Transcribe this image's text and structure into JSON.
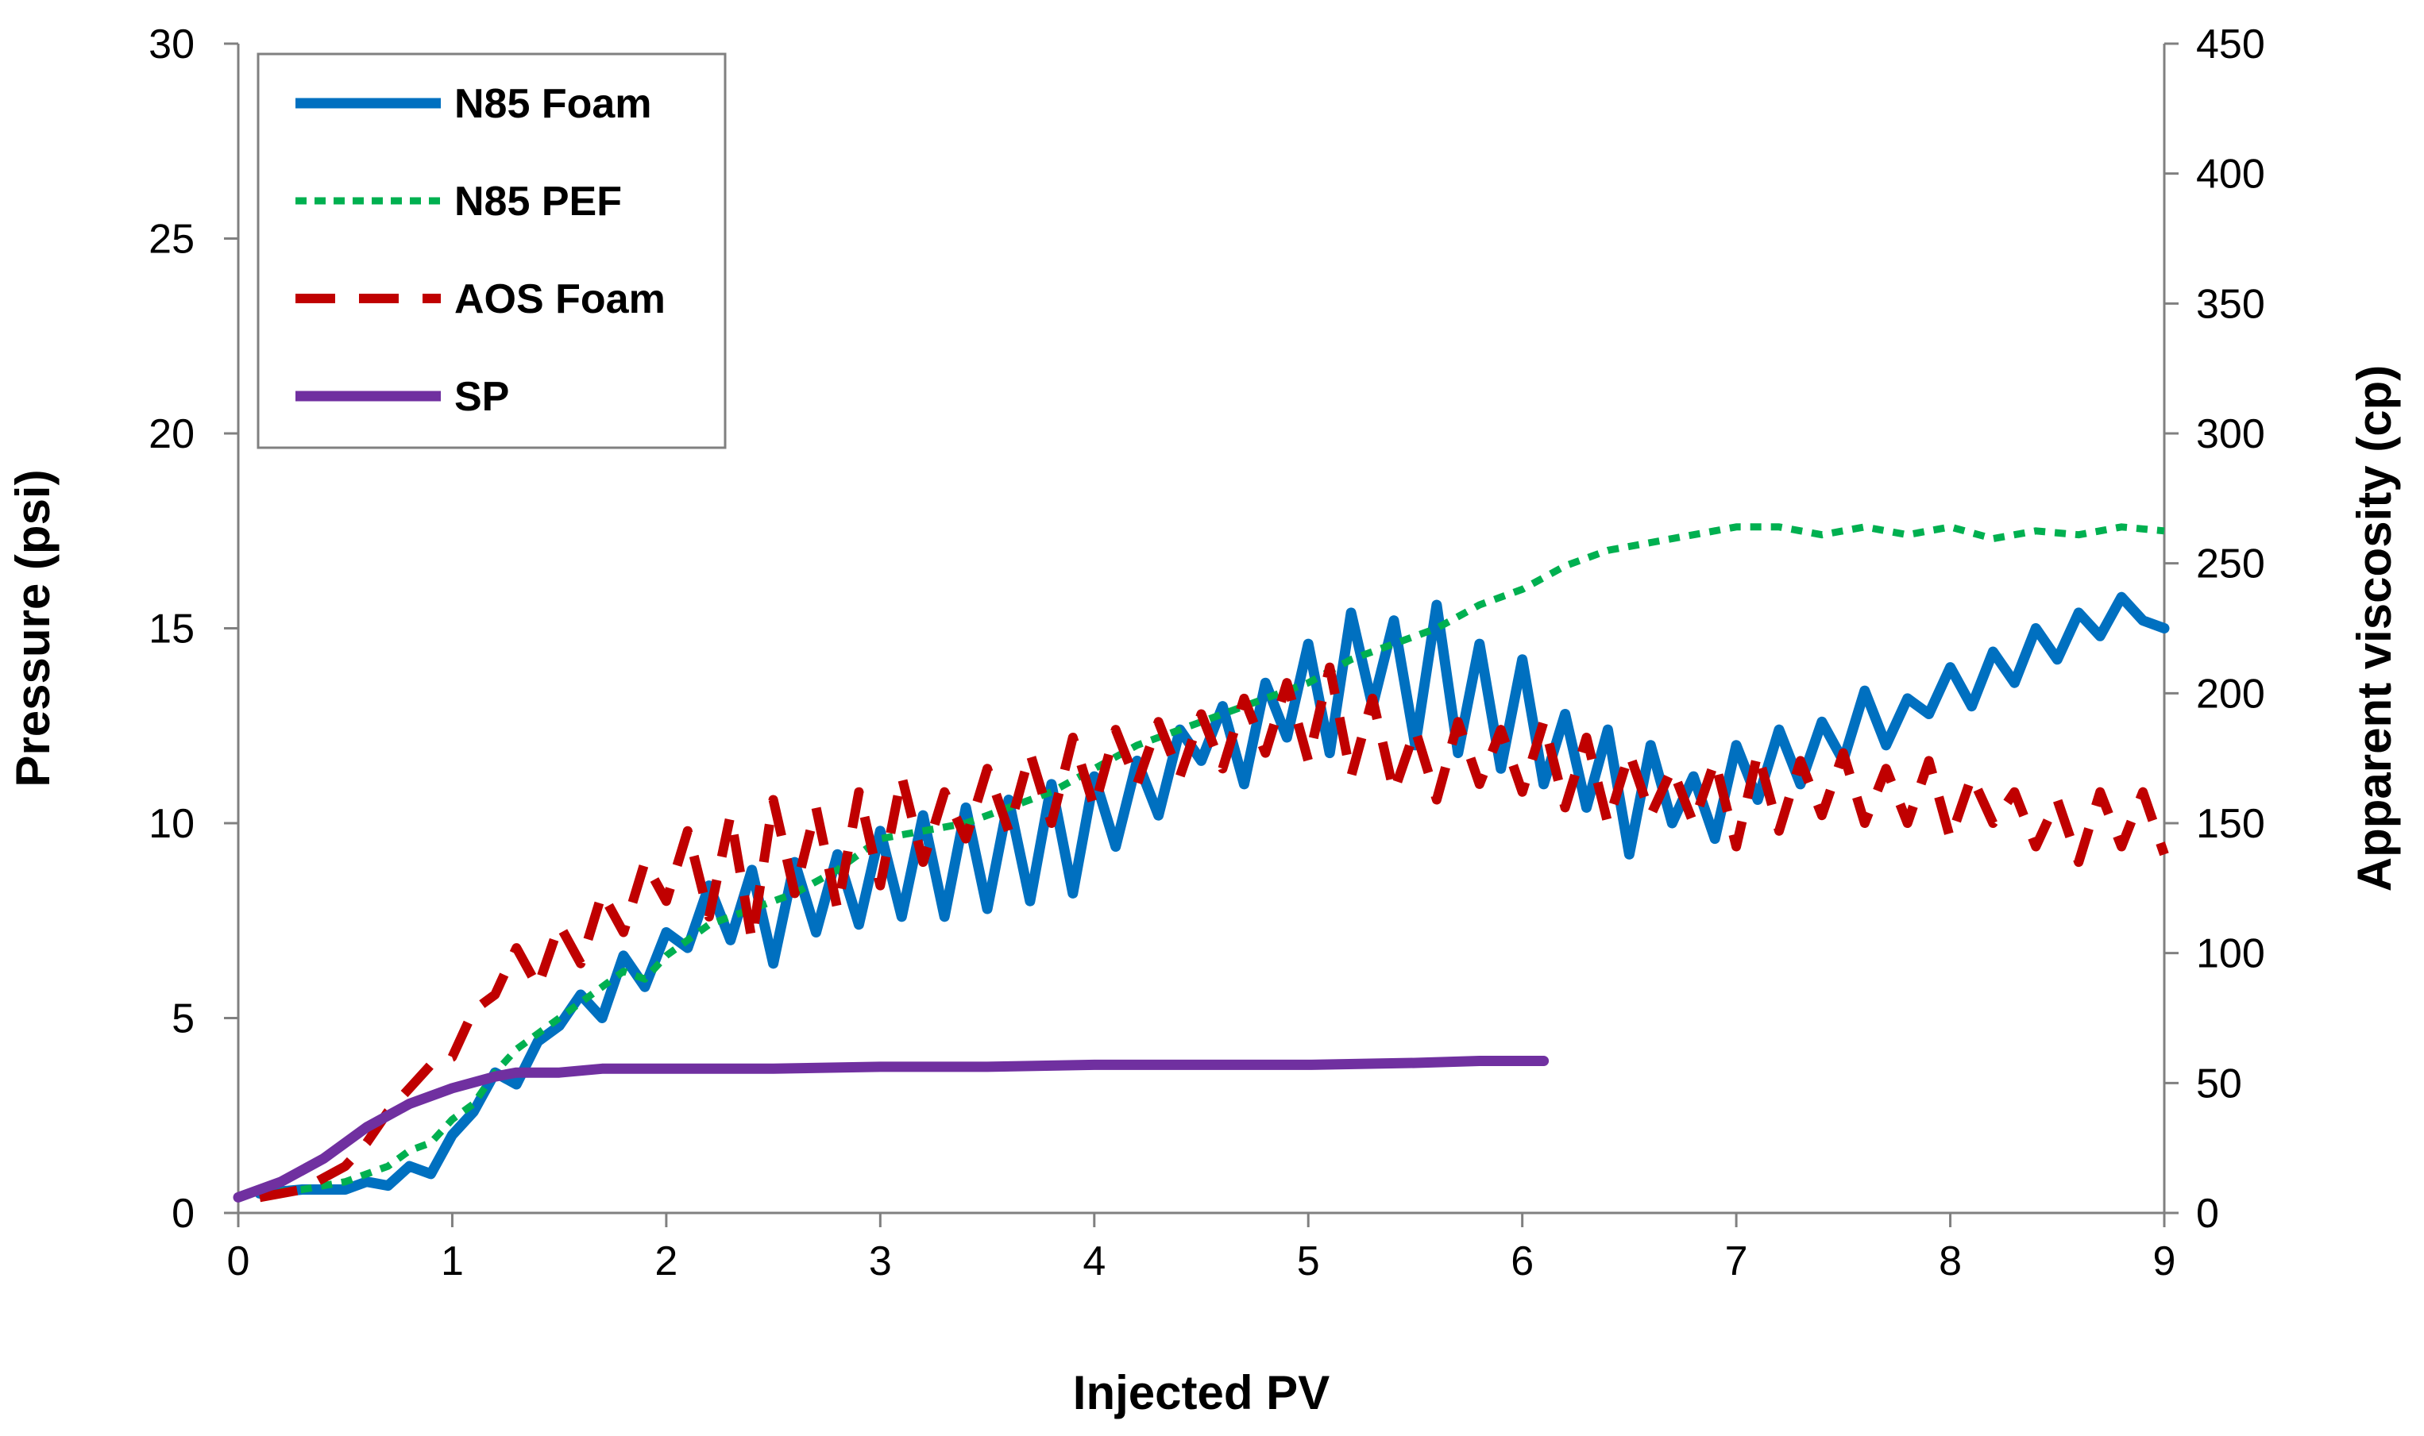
{
  "chart_data": {
    "type": "line",
    "title": "",
    "xlabel": "Injected PV",
    "ylabel": "Pressure (psi)",
    "y2label": "Apparent viscosity (cp)",
    "xlim": [
      0,
      9
    ],
    "ylim": [
      0,
      30
    ],
    "y2lim": [
      0,
      450
    ],
    "xticks": [
      "0",
      "1",
      "2",
      "3",
      "4",
      "5",
      "6",
      "7",
      "8",
      "9"
    ],
    "yticks": [
      "0",
      "5",
      "10",
      "15",
      "20",
      "25",
      "30"
    ],
    "y2ticks": [
      "0",
      "50",
      "100",
      "150",
      "200",
      "250",
      "300",
      "350",
      "400",
      "450"
    ],
    "grid": false,
    "legend_position": "top-left",
    "series": [
      {
        "name": "N85 Foam",
        "color": "#0070c0",
        "style": "solid",
        "x": [
          0.1,
          0.3,
          0.5,
          0.6,
          0.7,
          0.8,
          0.9,
          1.0,
          1.1,
          1.2,
          1.3,
          1.4,
          1.5,
          1.6,
          1.7,
          1.8,
          1.9,
          2.0,
          2.1,
          2.2,
          2.3,
          2.4,
          2.5,
          2.6,
          2.7,
          2.8,
          2.9,
          3.0,
          3.1,
          3.2,
          3.3,
          3.4,
          3.5,
          3.6,
          3.7,
          3.8,
          3.9,
          4.0,
          4.1,
          4.2,
          4.3,
          4.4,
          4.5,
          4.6,
          4.7,
          4.8,
          4.9,
          5.0,
          5.1,
          5.2,
          5.3,
          5.4,
          5.5,
          5.6,
          5.7,
          5.8,
          5.9,
          6.0,
          6.1,
          6.2,
          6.3,
          6.4,
          6.5,
          6.6,
          6.7,
          6.8,
          6.9,
          7.0,
          7.1,
          7.2,
          7.3,
          7.4,
          7.5,
          7.6,
          7.7,
          7.8,
          7.9,
          8.0,
          8.1,
          8.2,
          8.3,
          8.4,
          8.5,
          8.6,
          8.7,
          8.8,
          8.9,
          9.0
        ],
        "y": [
          0.5,
          0.6,
          0.6,
          0.8,
          0.7,
          1.2,
          1.0,
          2.0,
          2.6,
          3.6,
          3.3,
          4.4,
          4.8,
          5.6,
          5.0,
          6.6,
          5.8,
          7.2,
          6.8,
          8.4,
          7.0,
          8.8,
          6.4,
          9.0,
          7.2,
          9.2,
          7.4,
          9.8,
          7.6,
          10.2,
          7.6,
          10.4,
          7.8,
          10.6,
          8.0,
          11.0,
          8.2,
          11.2,
          9.4,
          11.6,
          10.2,
          12.4,
          11.6,
          13.0,
          11.0,
          13.6,
          12.2,
          14.6,
          11.8,
          15.4,
          13.0,
          15.2,
          12.0,
          15.6,
          11.8,
          14.6,
          11.4,
          14.2,
          11.0,
          12.8,
          10.4,
          12.4,
          9.2,
          12.0,
          10.0,
          11.2,
          9.6,
          12.0,
          10.6,
          12.4,
          11.0,
          12.6,
          11.6,
          13.4,
          12.0,
          13.2,
          12.8,
          14.0,
          13.0,
          14.4,
          13.6,
          15.0,
          14.2,
          15.4,
          14.8,
          15.8,
          15.2,
          15.0
        ]
      },
      {
        "name": "N85 PEF",
        "color": "#00b050",
        "style": "dotted",
        "x": [
          0.1,
          0.3,
          0.5,
          0.6,
          0.7,
          0.8,
          0.9,
          1.0,
          1.1,
          1.2,
          1.3,
          1.4,
          1.5,
          1.6,
          1.7,
          1.8,
          1.9,
          2.0,
          2.2,
          2.4,
          2.6,
          2.8,
          3.0,
          3.2,
          3.4,
          3.6,
          3.8,
          4.0,
          4.2,
          4.4,
          4.6,
          4.8,
          5.0,
          5.2,
          5.4,
          5.6,
          5.8,
          6.0,
          6.2,
          6.4,
          6.6,
          6.8,
          7.0,
          7.2,
          7.4,
          7.6,
          7.8,
          8.0,
          8.2,
          8.4,
          8.6,
          8.8,
          9.0
        ],
        "y": [
          0.5,
          0.6,
          0.8,
          1.0,
          1.2,
          1.6,
          1.8,
          2.4,
          2.8,
          3.6,
          4.2,
          4.6,
          5.0,
          5.4,
          5.8,
          6.2,
          6.0,
          6.6,
          7.4,
          7.8,
          8.2,
          8.8,
          9.6,
          9.8,
          10.0,
          10.4,
          10.8,
          11.4,
          12.0,
          12.4,
          12.8,
          13.2,
          13.6,
          14.2,
          14.6,
          15.0,
          15.6,
          16.0,
          16.6,
          17.0,
          17.2,
          17.4,
          17.6,
          17.6,
          17.4,
          17.6,
          17.4,
          17.6,
          17.3,
          17.5,
          17.4,
          17.6,
          17.5
        ]
      },
      {
        "name": "AOS Foam",
        "color": "#c00000",
        "style": "dashed",
        "x": [
          0.1,
          0.3,
          0.5,
          0.6,
          0.7,
          0.8,
          0.9,
          1.0,
          1.1,
          1.2,
          1.3,
          1.4,
          1.5,
          1.6,
          1.7,
          1.8,
          1.9,
          2.0,
          2.1,
          2.2,
          2.3,
          2.4,
          2.5,
          2.6,
          2.7,
          2.8,
          2.9,
          3.0,
          3.1,
          3.2,
          3.3,
          3.4,
          3.5,
          3.6,
          3.7,
          3.8,
          3.9,
          4.0,
          4.1,
          4.2,
          4.3,
          4.4,
          4.5,
          4.6,
          4.7,
          4.8,
          4.9,
          5.0,
          5.1,
          5.2,
          5.3,
          5.4,
          5.5,
          5.6,
          5.7,
          5.8,
          5.9,
          6.0,
          6.1,
          6.2,
          6.3,
          6.4,
          6.5,
          6.6,
          6.7,
          6.8,
          6.9,
          7.0,
          7.1,
          7.2,
          7.3,
          7.4,
          7.5,
          7.6,
          7.7,
          7.8,
          7.9,
          8.0,
          8.1,
          8.2,
          8.3,
          8.4,
          8.5,
          8.6,
          8.7,
          8.8,
          8.9,
          9.0
        ],
        "y": [
          0.4,
          0.6,
          1.2,
          1.8,
          2.6,
          3.2,
          3.8,
          4.0,
          5.2,
          5.6,
          6.8,
          5.8,
          7.4,
          6.4,
          8.2,
          7.2,
          9.0,
          8.0,
          9.8,
          7.6,
          10.2,
          7.0,
          10.6,
          8.2,
          10.4,
          7.8,
          10.8,
          8.4,
          11.2,
          9.0,
          10.8,
          9.6,
          11.4,
          9.8,
          11.8,
          10.0,
          12.2,
          10.4,
          12.4,
          11.0,
          12.6,
          11.2,
          12.8,
          11.4,
          13.2,
          11.8,
          13.6,
          11.6,
          14.0,
          11.2,
          13.2,
          10.8,
          12.4,
          10.6,
          12.6,
          11.0,
          12.4,
          10.8,
          12.6,
          10.4,
          12.2,
          10.0,
          11.8,
          10.2,
          11.4,
          10.0,
          11.6,
          9.4,
          11.8,
          9.8,
          11.6,
          10.2,
          11.8,
          10.0,
          11.4,
          10.0,
          11.6,
          9.6,
          11.2,
          10.0,
          10.8,
          9.4,
          10.6,
          9.0,
          10.8,
          9.4,
          10.8,
          9.2
        ]
      },
      {
        "name": "SP",
        "color": "#7030a0",
        "style": "solid",
        "x": [
          0.0,
          0.2,
          0.4,
          0.6,
          0.8,
          1.0,
          1.2,
          1.3,
          1.5,
          1.7,
          2.0,
          2.5,
          3.0,
          3.5,
          4.0,
          4.5,
          5.0,
          5.5,
          5.8,
          6.1
        ],
        "y": [
          0.4,
          0.8,
          1.4,
          2.2,
          2.8,
          3.2,
          3.5,
          3.6,
          3.6,
          3.7,
          3.7,
          3.7,
          3.75,
          3.75,
          3.8,
          3.8,
          3.8,
          3.85,
          3.9,
          3.9
        ]
      }
    ]
  }
}
